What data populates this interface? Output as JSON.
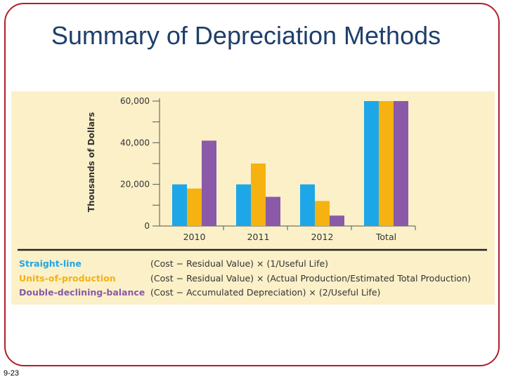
{
  "slide": {
    "title": "Summary of Depreciation Methods",
    "number": "9-23"
  },
  "colors": {
    "frame": "#b0202a",
    "title": "#1f3f6b",
    "panel_bg": "#fbf0c8",
    "axis": "#555555"
  },
  "legend": [
    {
      "label": "Straight-line",
      "color": "#1ea7e8",
      "formula": "(Cost − Residual Value) × (1/Useful Life)"
    },
    {
      "label": "Units-of-production",
      "color": "#f5b210",
      "formula": "(Cost − Residual Value) × (Actual Production/Estimated Total Production)"
    },
    {
      "label": "Double-declining-balance",
      "color": "#8a5aa8",
      "formula": "(Cost − Accumulated Depreciation) × (2/Useful Life)"
    }
  ],
  "chart_data": {
    "type": "bar",
    "title": "",
    "xlabel": "",
    "ylabel": "Thousands of Dollars",
    "categories": [
      "2010",
      "2011",
      "2012",
      "Total"
    ],
    "ylim": [
      0,
      60000
    ],
    "yticks": [
      0,
      20000,
      40000,
      60000
    ],
    "ytick_labels": [
      "0",
      "20,000",
      "40,000",
      "60,000"
    ],
    "series": [
      {
        "name": "Straight-line",
        "color": "#1ea7e8",
        "values": [
          20000,
          20000,
          20000,
          60000
        ]
      },
      {
        "name": "Units-of-production",
        "color": "#f5b210",
        "values": [
          18000,
          30000,
          12000,
          60000
        ]
      },
      {
        "name": "Double-declining-balance",
        "color": "#8a5aa8",
        "values": [
          41000,
          14000,
          5000,
          60000
        ]
      }
    ],
    "grid": false,
    "legend_position": "bottom"
  }
}
